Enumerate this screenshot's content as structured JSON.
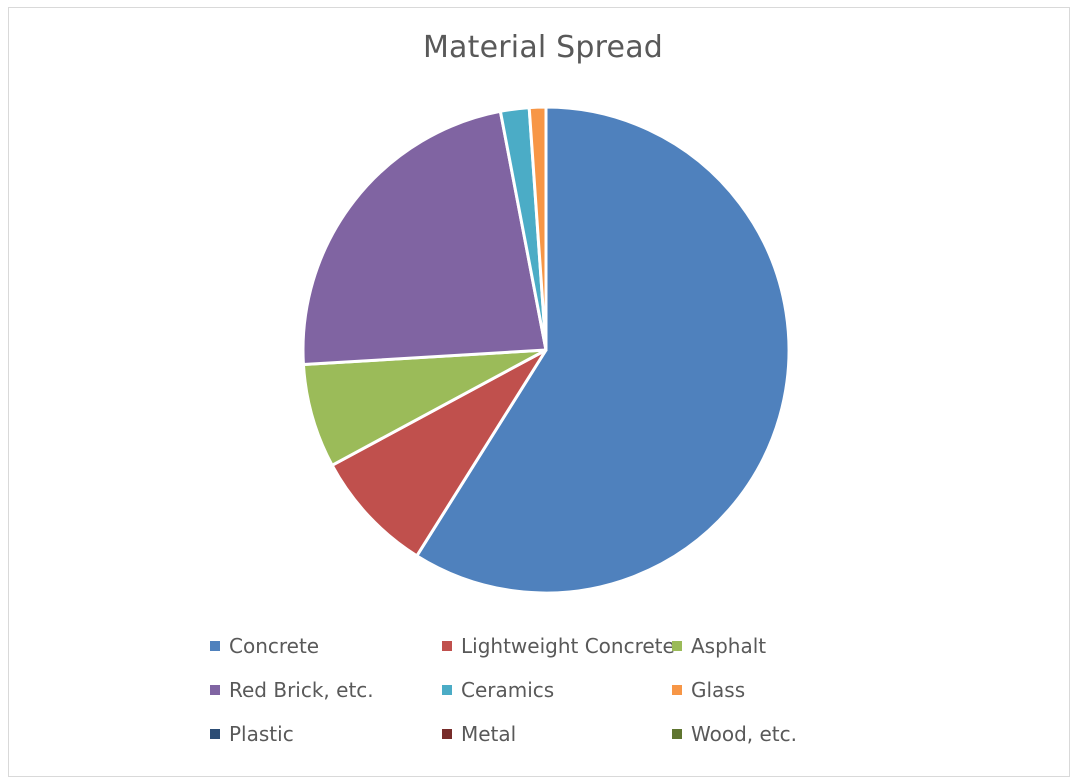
{
  "chart_data": {
    "type": "pie",
    "title": "Material Spread",
    "categories": [
      "Concrete",
      "Lightweight Concrete",
      "Asphalt",
      "Red Brick, etc.",
      "Ceramics",
      "Glass",
      "Plastic",
      "Metal",
      "Wood, etc."
    ],
    "values": [
      58.8,
      8.2,
      6.9,
      22.9,
      1.9,
      1.1,
      0.0,
      0.0,
      0.0
    ],
    "colors": [
      "#4f81bd",
      "#c0504d",
      "#9bbb59",
      "#8064a2",
      "#4bacc6",
      "#f79646",
      "#2c4d75",
      "#772c2a",
      "#5f7530"
    ],
    "legend_position": "bottom",
    "start_angle_deg": 0,
    "direction": "clockwise"
  },
  "legend": {
    "items": [
      "Concrete",
      "Lightweight Concrete",
      "Asphalt",
      "Red Brick, etc.",
      "Ceramics",
      "Glass",
      "Plastic",
      "Metal",
      "Wood, etc."
    ]
  }
}
